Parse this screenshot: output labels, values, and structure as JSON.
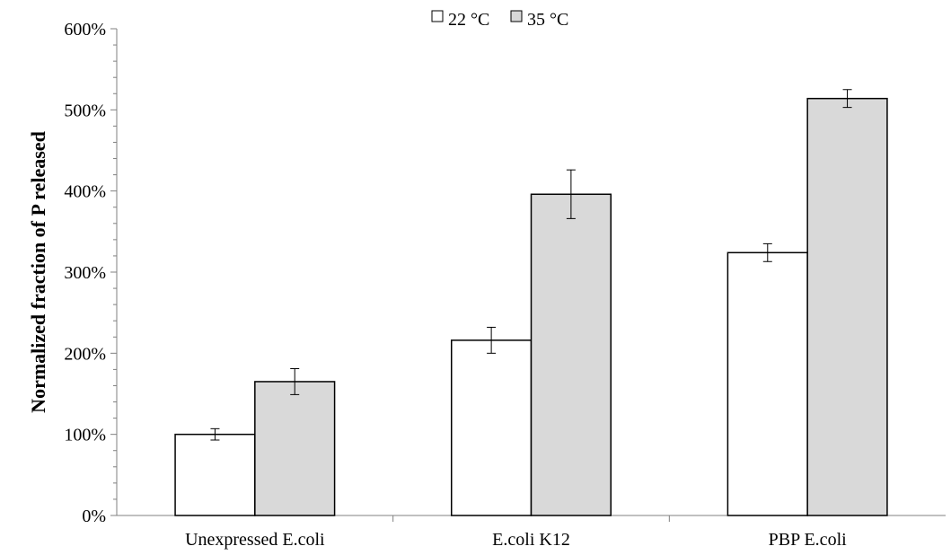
{
  "chart_data": {
    "type": "bar",
    "title": "",
    "xlabel": "",
    "ylabel": "Normalized fraction of P released",
    "categories": [
      "Unexpressed E.coli",
      "E.coli K12",
      "PBP E.coli"
    ],
    "series": [
      {
        "name": "22 °C",
        "values": [
          100,
          216,
          324
        ],
        "errors": [
          7,
          16,
          11
        ],
        "color": "#ffffff"
      },
      {
        "name": "35 °C",
        "values": [
          165,
          396,
          514
        ],
        "errors": [
          16,
          30,
          11
        ],
        "color": "#d9d9d9"
      }
    ],
    "value_unit": "%",
    "ylim": [
      0,
      600
    ],
    "yticks": [
      0,
      100,
      200,
      300,
      400,
      500,
      600
    ],
    "ytick_labels": [
      "0%",
      "100%",
      "200%",
      "300%",
      "400%",
      "500%",
      "600%"
    ],
    "legend_position": "top-center",
    "grid": false,
    "bar_edge_color": "#000000"
  }
}
